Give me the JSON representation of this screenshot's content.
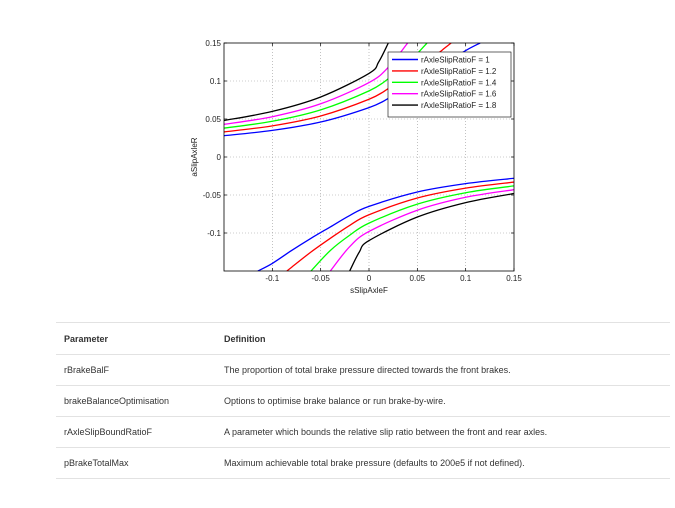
{
  "chart_data": {
    "type": "line",
    "title": "",
    "xlabel": "sSlipAxleF",
    "ylabel": "aSlipAxleR",
    "xlim": [
      -0.15,
      0.15
    ],
    "ylim": [
      -0.15,
      0.15
    ],
    "xticks": [
      -0.1,
      -0.05,
      0,
      0.05,
      0.1,
      0.15
    ],
    "xtick_labels": [
      "-0.1",
      "-0.05",
      "0",
      "0.05",
      "0.1",
      "0.15"
    ],
    "yticks": [
      0.15,
      0.1,
      0.05,
      0,
      -0.05,
      -0.1
    ],
    "ytick_labels": [
      "0.15",
      "0.1",
      "0.05",
      "0",
      "-0.05",
      "-0.1"
    ],
    "grid": true,
    "legend_position": "top-right",
    "series": [
      {
        "name": "rAxleSlipRatioF = 1",
        "color": "#0000ff",
        "ratio": 1,
        "upper": {
          "x": [
            -0.15,
            -0.1,
            -0.05,
            0,
            0.02,
            0.04,
            0.06,
            0.08,
            0.1,
            0.115
          ],
          "y": [
            0.028,
            0.035,
            0.046,
            0.065,
            0.077,
            0.092,
            0.107,
            0.123,
            0.14,
            0.15
          ]
        },
        "lower": {
          "x": [
            -0.115,
            -0.1,
            -0.08,
            -0.06,
            -0.04,
            -0.02,
            0,
            0.05,
            0.1,
            0.15
          ],
          "y": [
            -0.15,
            -0.14,
            -0.123,
            -0.107,
            -0.092,
            -0.077,
            -0.065,
            -0.046,
            -0.035,
            -0.028
          ]
        }
      },
      {
        "name": "rAxleSlipRatioF = 1.2",
        "color": "#ff0000",
        "ratio": 1.2,
        "upper": {
          "x": [
            -0.15,
            -0.1,
            -0.05,
            0,
            0.02,
            0.04,
            0.06,
            0.08,
            0.085
          ],
          "y": [
            0.033,
            0.041,
            0.054,
            0.076,
            0.09,
            0.107,
            0.125,
            0.145,
            0.15
          ]
        },
        "lower": {
          "x": [
            -0.085,
            -0.08,
            -0.06,
            -0.04,
            -0.02,
            0,
            0.05,
            0.1,
            0.15
          ],
          "y": [
            -0.15,
            -0.145,
            -0.125,
            -0.107,
            -0.09,
            -0.076,
            -0.054,
            -0.041,
            -0.033
          ]
        }
      },
      {
        "name": "rAxleSlipRatioF = 1.4",
        "color": "#00ff00",
        "ratio": 1.4,
        "upper": {
          "x": [
            -0.15,
            -0.1,
            -0.05,
            0,
            0.02,
            0.04,
            0.06
          ],
          "y": [
            0.038,
            0.047,
            0.062,
            0.087,
            0.103,
            0.123,
            0.15
          ]
        },
        "lower": {
          "x": [
            -0.06,
            -0.04,
            -0.02,
            0,
            0.05,
            0.1,
            0.15
          ],
          "y": [
            -0.15,
            -0.123,
            -0.103,
            -0.087,
            -0.062,
            -0.047,
            -0.038
          ]
        }
      },
      {
        "name": "rAxleSlipRatioF = 1.6",
        "color": "#ff00ff",
        "ratio": 1.6,
        "upper": {
          "x": [
            -0.15,
            -0.1,
            -0.05,
            0,
            0.02,
            0.04
          ],
          "y": [
            0.043,
            0.053,
            0.07,
            0.098,
            0.118,
            0.15
          ]
        },
        "lower": {
          "x": [
            -0.04,
            -0.02,
            0,
            0.05,
            0.1,
            0.15
          ],
          "y": [
            -0.15,
            -0.118,
            -0.098,
            -0.07,
            -0.053,
            -0.043
          ]
        }
      },
      {
        "name": "rAxleSlipRatioF = 1.8",
        "color": "#000000",
        "ratio": 1.8,
        "upper": {
          "x": [
            -0.15,
            -0.1,
            -0.05,
            0,
            0.01,
            0.02
          ],
          "y": [
            0.048,
            0.06,
            0.079,
            0.11,
            0.125,
            0.15
          ]
        },
        "lower": {
          "x": [
            -0.02,
            -0.01,
            0,
            0.05,
            0.1,
            0.15
          ],
          "y": [
            -0.15,
            -0.125,
            -0.11,
            -0.079,
            -0.06,
            -0.048
          ]
        }
      }
    ]
  },
  "table": {
    "headers": {
      "parameter": "Parameter",
      "definition": "Definition"
    },
    "rows": [
      {
        "parameter": "rBrakeBalF",
        "definition": "The proportion of total brake pressure directed towards the front brakes."
      },
      {
        "parameter": "brakeBalanceOptimisation",
        "definition": "Options to optimise brake balance or run brake-by-wire."
      },
      {
        "parameter": "rAxleSlipBoundRatioF",
        "definition": "A parameter which bounds the relative slip ratio between the front and rear axles."
      },
      {
        "parameter": "pBrakeTotalMax",
        "definition": "Maximum achievable total brake pressure (defaults to 200e5 if not defined)."
      }
    ]
  }
}
